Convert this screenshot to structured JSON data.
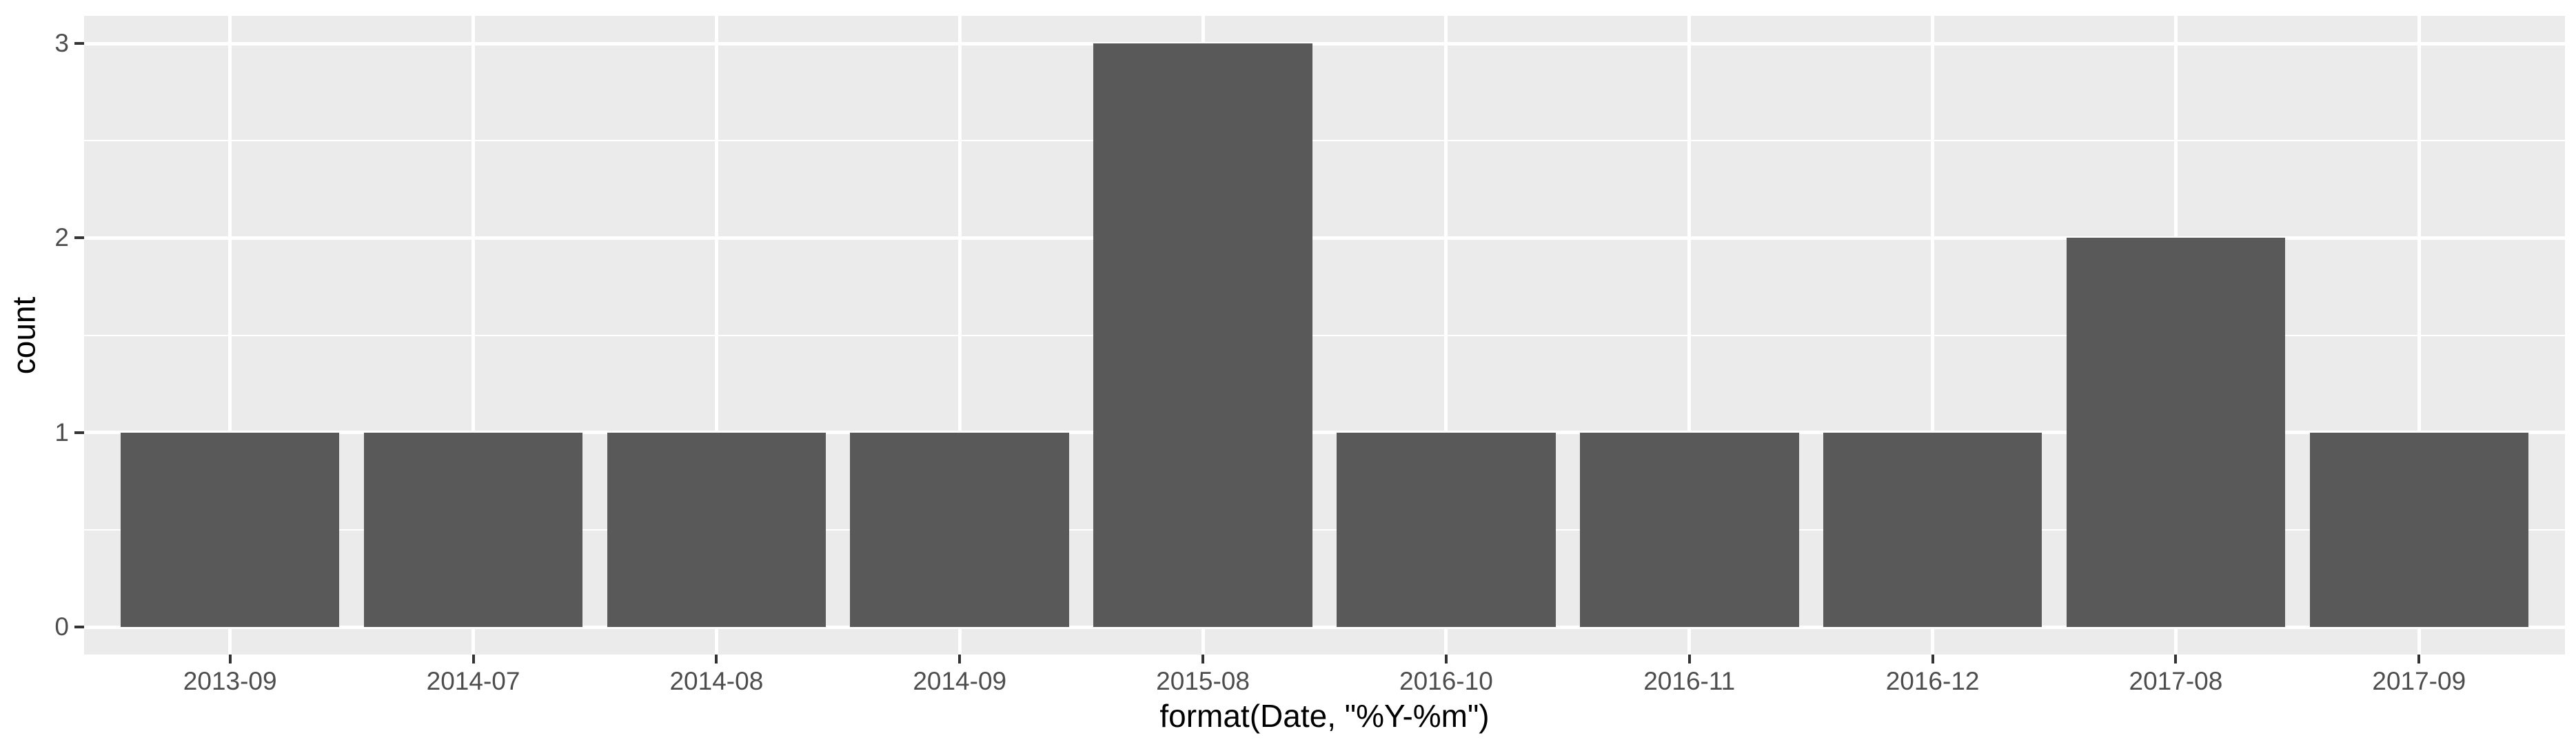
{
  "chart_data": {
    "type": "bar",
    "categories": [
      "2013-09",
      "2014-07",
      "2014-08",
      "2014-09",
      "2015-08",
      "2016-10",
      "2016-11",
      "2016-12",
      "2017-08",
      "2017-09"
    ],
    "values": [
      1,
      1,
      1,
      1,
      3,
      1,
      1,
      1,
      2,
      1
    ],
    "title": "",
    "xlabel": "format(Date, \"%Y-%m\")",
    "ylabel": "count",
    "yticks": [
      0,
      1,
      2,
      3
    ],
    "ylim": [
      0,
      3
    ],
    "y_minor_step": 0.5,
    "grid": true,
    "legend_position": "none",
    "bar_width_fraction": 0.9,
    "colors": {
      "bar_fill": "#595959",
      "panel_bg": "#EBEBEB",
      "grid_major": "#FFFFFF",
      "grid_minor": "#FFFFFF",
      "tick_label": "#4D4D4D",
      "tick_mark": "#333333",
      "axis_title": "#000000",
      "page_bg": "#FFFFFF"
    }
  }
}
